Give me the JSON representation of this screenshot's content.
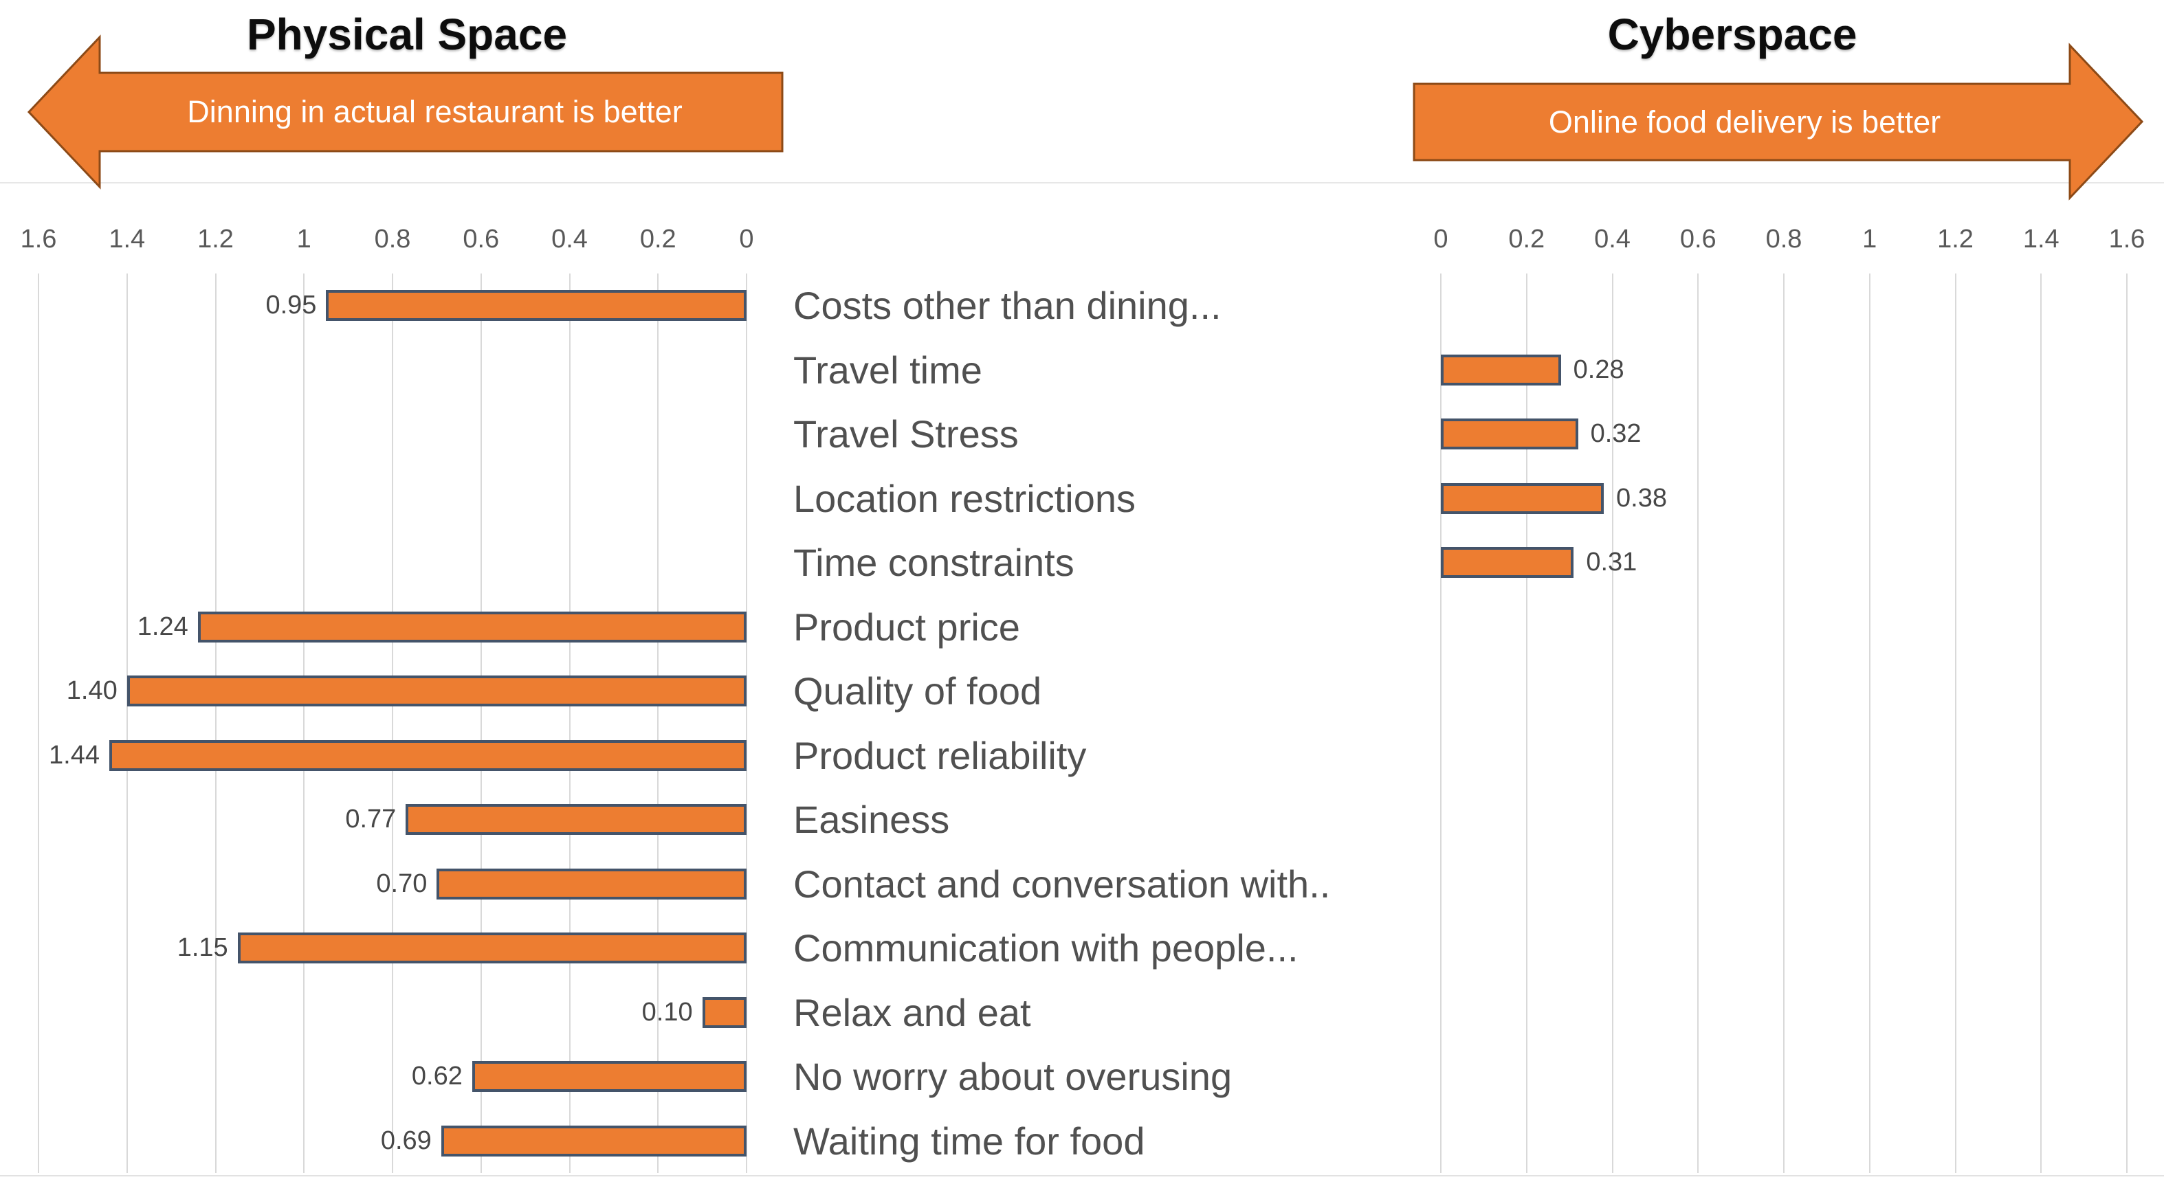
{
  "header": {
    "left_title": "Physical Space",
    "left_arrow_label": "Dinning in actual restaurant is better",
    "right_title": "Cyberspace",
    "right_arrow_label": "Online food delivery is better",
    "arrow_fill": "#ED7D31",
    "arrow_border": "#8C4A17"
  },
  "chart_data": {
    "type": "bar",
    "layout": "diverging-horizontal",
    "title": "",
    "axis_max": 1.6,
    "grid": true,
    "legend": false,
    "left_axis": {
      "label": "Physical Space",
      "direction": "right-to-left",
      "tick_labels": [
        "1.6",
        "1.4",
        "1.2",
        "1",
        "0.8",
        "0.6",
        "0.4",
        "0.2",
        "0"
      ]
    },
    "right_axis": {
      "label": "Cyberspace",
      "direction": "left-to-right",
      "tick_labels": [
        "0",
        "0.2",
        "0.4",
        "0.6",
        "0.8",
        "1",
        "1.2",
        "1.4",
        "1.6"
      ]
    },
    "series": [
      {
        "name": "Physical Space — Dinning in actual restaurant is better",
        "side": "left"
      },
      {
        "name": "Cyberspace — Online food delivery is better",
        "side": "right"
      }
    ],
    "rows": [
      {
        "category": "Costs other than dining...",
        "side": "left",
        "value": 0.95,
        "label": "0.95"
      },
      {
        "category": "Travel time",
        "side": "right",
        "value": 0.28,
        "label": "0.28"
      },
      {
        "category": "Travel Stress",
        "side": "right",
        "value": 0.32,
        "label": "0.32"
      },
      {
        "category": "Location restrictions",
        "side": "right",
        "value": 0.38,
        "label": "0.38"
      },
      {
        "category": "Time constraints",
        "side": "right",
        "value": 0.31,
        "label": "0.31"
      },
      {
        "category": "Product price",
        "side": "left",
        "value": 1.24,
        "label": "1.24"
      },
      {
        "category": "Quality of food",
        "side": "left",
        "value": 1.4,
        "label": "1.40"
      },
      {
        "category": "Product reliability",
        "side": "left",
        "value": 1.44,
        "label": "1.44"
      },
      {
        "category": "Easiness",
        "side": "left",
        "value": 0.77,
        "label": "0.77"
      },
      {
        "category": "Contact and conversation with..",
        "side": "left",
        "value": 0.7,
        "label": "0.70"
      },
      {
        "category": "Communication with people...",
        "side": "left",
        "value": 1.15,
        "label": "1.15"
      },
      {
        "category": "Relax and eat",
        "side": "left",
        "value": 0.1,
        "label": "0.10"
      },
      {
        "category": "No worry about overusing",
        "side": "left",
        "value": 0.62,
        "label": "0.62"
      },
      {
        "category": "Waiting time for food",
        "side": "left",
        "value": 0.69,
        "label": "0.69"
      }
    ],
    "bar_color": "#ED7D31",
    "bar_border_color": "#44546A",
    "gridline_color": "#D9D9D9"
  }
}
